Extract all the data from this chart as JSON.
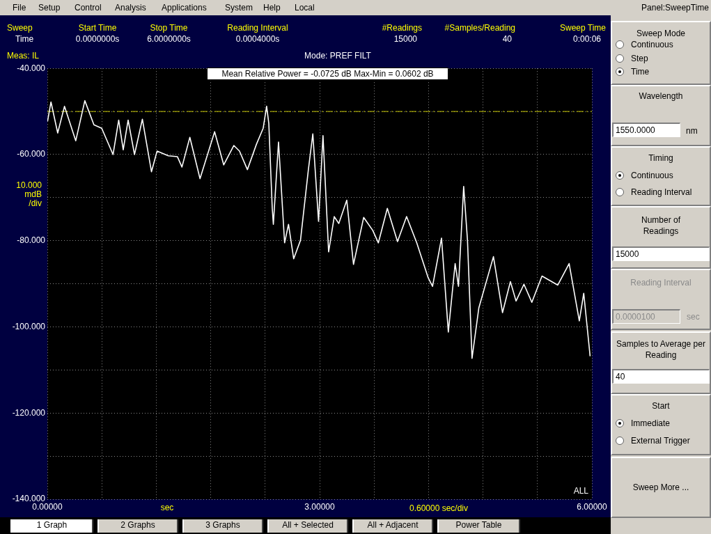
{
  "chart_data": {
    "type": "line",
    "xlabel": "sec",
    "ylabel": "10.000 mdB /div",
    "marker": "none",
    "grid": true,
    "xlim": [
      0,
      6
    ],
    "ylim": [
      -140,
      -40
    ],
    "xticks": [
      {
        "value": 0,
        "label": "0.00000"
      },
      {
        "value": 0.6,
        "label": null
      },
      {
        "value": 1.2,
        "label": null
      },
      {
        "value": 1.8,
        "label": null
      },
      {
        "value": 2.4,
        "label": null
      },
      {
        "value": 3,
        "label": "3.00000"
      },
      {
        "value": 3.6,
        "label": null
      },
      {
        "value": 4.2,
        "label": null
      },
      {
        "value": 4.8,
        "label": null
      },
      {
        "value": 5.4,
        "label": null
      },
      {
        "value": 6,
        "label": "6.00000"
      }
    ],
    "yticks": [
      {
        "value": -40,
        "label": "-40.000"
      },
      {
        "value": -50,
        "label": null
      },
      {
        "value": -60,
        "label": "-60.000"
      },
      {
        "value": -70,
        "label": null
      },
      {
        "value": -80,
        "label": "-80.000"
      },
      {
        "value": -90,
        "label": null
      },
      {
        "value": -100,
        "label": "-100.000"
      },
      {
        "value": -110,
        "label": null
      },
      {
        "value": -120,
        "label": "-120.000"
      },
      {
        "value": -130,
        "label": null
      },
      {
        "value": -140,
        "label": "-140.000"
      }
    ],
    "ref_lines": [
      {
        "axis": "y",
        "value": -50,
        "color": "#c8c800",
        "line_style": "dashed"
      }
    ],
    "series": [
      {
        "color": "#ffffff",
        "x": [
          0.002,
          0.04,
          0.114,
          0.189,
          0.313,
          0.413,
          0.513,
          0.599,
          0.724,
          0.786,
          0.836,
          0.89,
          0.96,
          1.047,
          1.147,
          1.209,
          1.333,
          1.433,
          1.483,
          1.57,
          1.682,
          1.843,
          1.943,
          2.055,
          2.117,
          2.204,
          2.304,
          2.378,
          2.416,
          2.44,
          2.478,
          2.49,
          2.547,
          2.614,
          2.657,
          2.714,
          2.789,
          2.876,
          2.925,
          2.988,
          3.037,
          3.099,
          3.161,
          3.211,
          3.299,
          3.373,
          3.485,
          3.585,
          3.647,
          3.746,
          3.858,
          3.958,
          4.07,
          4.194,
          4.244,
          4.343,
          4.418,
          4.493,
          4.53,
          4.587,
          4.629,
          4.679,
          4.754,
          4.915,
          5.015,
          5.102,
          5.164,
          5.251,
          5.338,
          5.45,
          5.624,
          5.749,
          5.861,
          5.91,
          5.98
        ],
        "values": [
          -52.3,
          -47.8,
          -55,
          -48.8,
          -56.8,
          -47.5,
          -53.1,
          -53.9,
          -60,
          -52,
          -58.9,
          -52,
          -60,
          -51.8,
          -64,
          -59.2,
          -60.3,
          -60.5,
          -62.9,
          -56,
          -65.6,
          -54.7,
          -62.4,
          -57.9,
          -59.2,
          -63.5,
          -57.6,
          -53.9,
          -48.8,
          -52.8,
          -72.5,
          -76.2,
          -57.1,
          -80.5,
          -76.2,
          -84.2,
          -79.9,
          -63.5,
          -55.2,
          -75.5,
          -55.6,
          -82.6,
          -74.4,
          -76,
          -70.6,
          -85.5,
          -74.6,
          -77.6,
          -80.5,
          -72.5,
          -80.2,
          -74.4,
          -80.5,
          -88.5,
          -90.6,
          -79.4,
          -101.2,
          -85.3,
          -90.6,
          -67.4,
          -79.9,
          -107.3,
          -95.6,
          -83.7,
          -96.7,
          -89.5,
          -94,
          -90.1,
          -94.3,
          -88.2,
          -90.3,
          -85.3,
          -98.6,
          -92.2,
          -106.8
        ]
      }
    ],
    "annotations": [
      "File",
      "Setup",
      "Control",
      "Analysis",
      "Applications",
      "System",
      "Help",
      "Local",
      "Panel:SweepTime",
      "Sweep",
      "Time",
      "Start Time",
      "0.0000000s",
      "Stop Time",
      "6.0000000s",
      "Reading Interval",
      "0.0004000s",
      "#Readings",
      "15000",
      "#Samples/Reading",
      "40",
      "Sweep Time",
      "0:00:06",
      "Meas:  IL",
      "Mode:  PREF FILT",
      "Mean Relative Power = -0.0725 dB Max-Min = 0.0602 dB",
      "0.60000 sec/div",
      "ALL",
      "Sweep Mode",
      "Continuous",
      "Step",
      "Time",
      "Wavelength",
      "1550.0000",
      "nm",
      "Timing",
      "Continuous",
      "Reading Interval",
      "Number of Readings",
      "15000",
      "Reading Interval",
      "0.0000100",
      "sec",
      "Samples to Average per Reading",
      "40",
      "Start",
      "Immediate",
      "External Trigger",
      "Sweep More ...",
      "1 Graph",
      "2 Graphs",
      "3 Graphs",
      "All + Selected",
      "All + Adjacent",
      "Power Table"
    ]
  }
}
